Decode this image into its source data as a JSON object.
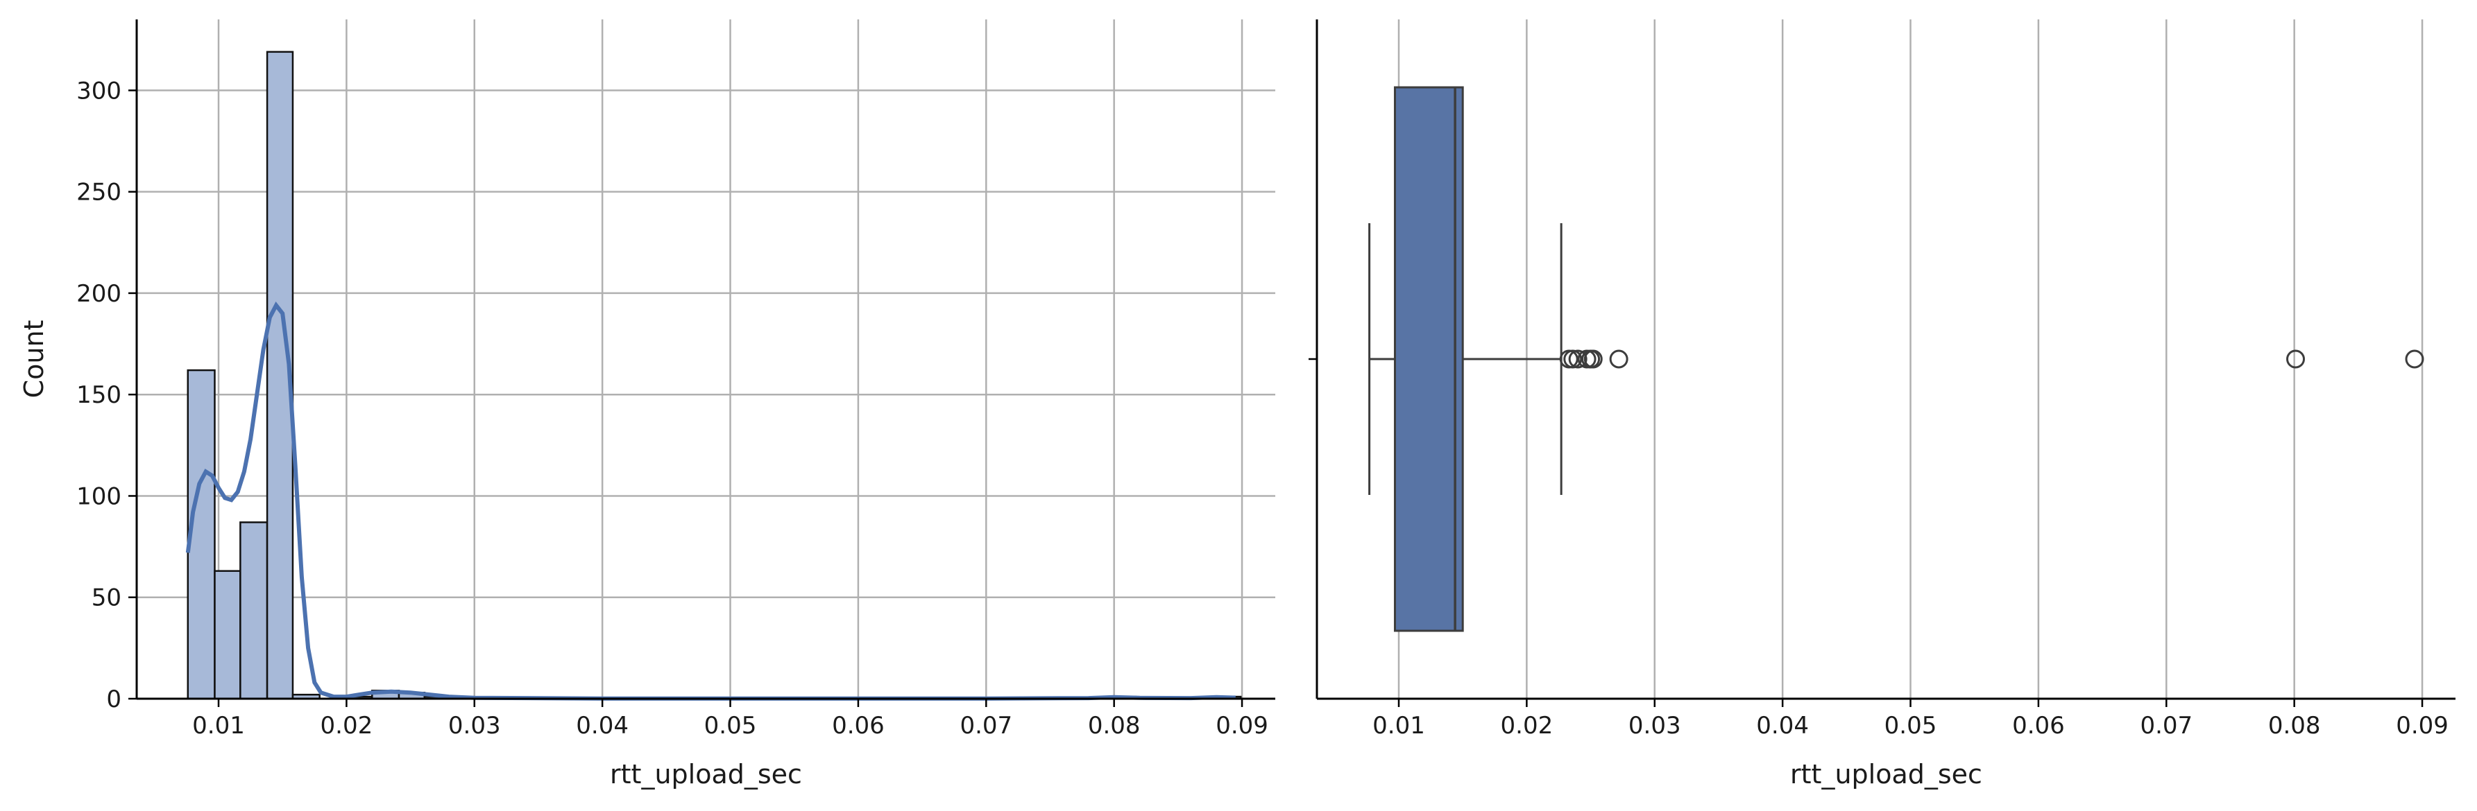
{
  "chart_data": [
    {
      "type": "histogram",
      "xlabel": "rtt_upload_sec",
      "ylabel": "Count",
      "xlim": [
        0.0036,
        0.0926
      ],
      "ylim": [
        0,
        335
      ],
      "xticks": [
        {
          "value": 0.01,
          "label": "0.01"
        },
        {
          "value": 0.02,
          "label": "0.02"
        },
        {
          "value": 0.03,
          "label": "0.03"
        },
        {
          "value": 0.04,
          "label": "0.04"
        },
        {
          "value": 0.05,
          "label": "0.05"
        },
        {
          "value": 0.06,
          "label": "0.06"
        },
        {
          "value": 0.07,
          "label": "0.07"
        },
        {
          "value": 0.08,
          "label": "0.08"
        },
        {
          "value": 0.09,
          "label": "0.09"
        }
      ],
      "yticks": [
        {
          "value": 0,
          "label": "0"
        },
        {
          "value": 50,
          "label": "50"
        },
        {
          "value": 100,
          "label": "100"
        },
        {
          "value": 150,
          "label": "150"
        },
        {
          "value": 200,
          "label": "200"
        },
        {
          "value": 250,
          "label": "250"
        },
        {
          "value": 300,
          "label": "300"
        }
      ],
      "grid": true,
      "bar_color": "#a7b9d8",
      "edge_color": "#111111",
      "bins": [
        {
          "x0": 0.0076,
          "x1": 0.0097,
          "count": 162
        },
        {
          "x0": 0.0097,
          "x1": 0.0117,
          "count": 63
        },
        {
          "x0": 0.0117,
          "x1": 0.0138,
          "count": 87
        },
        {
          "x0": 0.0138,
          "x1": 0.0158,
          "count": 319
        },
        {
          "x0": 0.0158,
          "x1": 0.0179,
          "count": 2
        },
        {
          "x0": 0.0179,
          "x1": 0.02,
          "count": 0
        },
        {
          "x0": 0.02,
          "x1": 0.022,
          "count": 1
        },
        {
          "x0": 0.022,
          "x1": 0.0241,
          "count": 4
        },
        {
          "x0": 0.0241,
          "x1": 0.0261,
          "count": 3
        },
        {
          "x0": 0.0261,
          "x1": 0.0282,
          "count": 1
        },
        {
          "x0": 0.0796,
          "x1": 0.0817,
          "count": 1
        },
        {
          "x0": 0.0878,
          "x1": 0.0899,
          "count": 1
        }
      ],
      "kde": {
        "color": "#4c72b0",
        "points": [
          [
            0.0076,
            72
          ],
          [
            0.008,
            92
          ],
          [
            0.0085,
            106
          ],
          [
            0.009,
            112
          ],
          [
            0.0095,
            110
          ],
          [
            0.01,
            104
          ],
          [
            0.0105,
            99
          ],
          [
            0.011,
            98
          ],
          [
            0.0115,
            102
          ],
          [
            0.012,
            112
          ],
          [
            0.0125,
            128
          ],
          [
            0.013,
            150
          ],
          [
            0.0135,
            172
          ],
          [
            0.014,
            188
          ],
          [
            0.0145,
            194
          ],
          [
            0.015,
            190
          ],
          [
            0.0155,
            165
          ],
          [
            0.016,
            115
          ],
          [
            0.0165,
            60
          ],
          [
            0.017,
            25
          ],
          [
            0.0175,
            8
          ],
          [
            0.018,
            3
          ],
          [
            0.019,
            1
          ],
          [
            0.02,
            1
          ],
          [
            0.021,
            2
          ],
          [
            0.022,
            3
          ],
          [
            0.0235,
            3.5
          ],
          [
            0.025,
            3
          ],
          [
            0.0265,
            2
          ],
          [
            0.028,
            1
          ],
          [
            0.03,
            0.4
          ],
          [
            0.04,
            0.1
          ],
          [
            0.05,
            0.1
          ],
          [
            0.06,
            0.1
          ],
          [
            0.07,
            0.1
          ],
          [
            0.078,
            0.3
          ],
          [
            0.08,
            0.8
          ],
          [
            0.082,
            0.4
          ],
          [
            0.086,
            0.3
          ],
          [
            0.088,
            0.8
          ],
          [
            0.0895,
            0.5
          ]
        ]
      }
    },
    {
      "type": "box",
      "xlabel": "rtt_upload_sec",
      "xlim": [
        0.0036,
        0.0926
      ],
      "xticks": [
        {
          "value": 0.01,
          "label": "0.01"
        },
        {
          "value": 0.02,
          "label": "0.02"
        },
        {
          "value": 0.03,
          "label": "0.03"
        },
        {
          "value": 0.04,
          "label": "0.04"
        },
        {
          "value": 0.05,
          "label": "0.05"
        },
        {
          "value": 0.06,
          "label": "0.06"
        },
        {
          "value": 0.07,
          "label": "0.07"
        },
        {
          "value": 0.08,
          "label": "0.08"
        },
        {
          "value": 0.09,
          "label": "0.09"
        }
      ],
      "grid": true,
      "box_color": "#5874a5",
      "line_color": "#3d3d3d",
      "whisker_low": 0.0077,
      "q1": 0.0097,
      "median": 0.0144,
      "q3": 0.015,
      "whisker_high": 0.0227,
      "outliers": [
        0.0233,
        0.0236,
        0.024,
        0.0247,
        0.025,
        0.0252,
        0.0272,
        0.0801,
        0.0894
      ]
    }
  ]
}
